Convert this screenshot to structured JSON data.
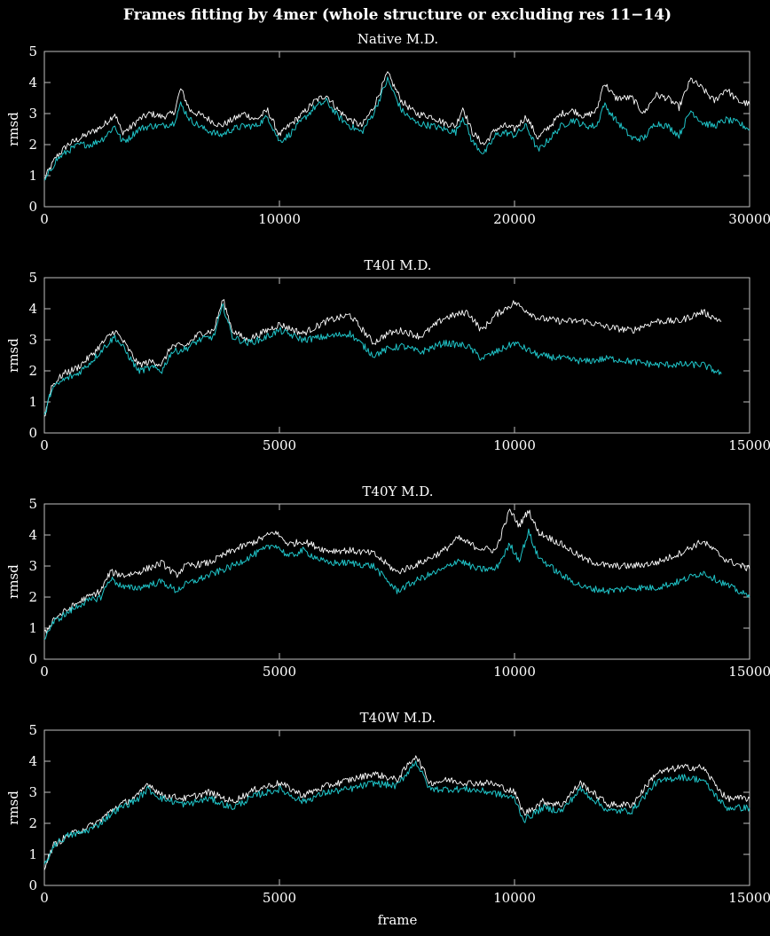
{
  "suptitle": "Frames fitting by 4mer (whole structure or excluding res 11−14)",
  "xlabel": "frame",
  "colors": {
    "background": "#000000",
    "whole_structure": "#ffffff",
    "excluding_res": "#1fc4c8",
    "axes": "#bfbfbf"
  },
  "chart_data": [
    {
      "type": "line",
      "title": "Native M.D.",
      "ylabel": "rmsd",
      "xlim": [
        0,
        30000
      ],
      "ylim": [
        0,
        5
      ],
      "xticks": [
        0,
        10000,
        20000,
        30000
      ],
      "yticks": [
        0,
        1,
        2,
        3,
        4,
        5
      ],
      "series": [
        {
          "name": "whole structure",
          "color": "#ffffff",
          "x": [
            0,
            500,
            1000,
            1500,
            2000,
            2500,
            3000,
            3300,
            3600,
            4000,
            4500,
            5000,
            5500,
            5800,
            6200,
            6800,
            7500,
            8000,
            8500,
            9000,
            9500,
            10000,
            10400,
            11000,
            11500,
            12000,
            12500,
            13000,
            13500,
            14000,
            14600,
            15200,
            15800,
            16500,
            17000,
            17500,
            17800,
            18200,
            18700,
            19200,
            19600,
            20000,
            20500,
            21000,
            21500,
            22000,
            22500,
            23000,
            23500,
            23800,
            24300,
            25000,
            25500,
            26000,
            26500,
            27000,
            27500,
            28000,
            28500,
            29000,
            29500,
            30000
          ],
          "y": [
            0.9,
            1.6,
            2.0,
            2.2,
            2.4,
            2.6,
            3.0,
            2.4,
            2.5,
            2.8,
            3.0,
            2.9,
            3.0,
            3.8,
            3.1,
            2.9,
            2.6,
            2.8,
            3.0,
            2.8,
            3.1,
            2.3,
            2.6,
            3.0,
            3.4,
            3.6,
            3.1,
            2.8,
            2.6,
            3.2,
            4.3,
            3.4,
            3.0,
            2.9,
            2.7,
            2.6,
            3.2,
            2.4,
            2.0,
            2.5,
            2.6,
            2.5,
            2.9,
            2.2,
            2.6,
            3.0,
            3.1,
            2.9,
            3.1,
            4.0,
            3.5,
            3.5,
            3.0,
            3.6,
            3.5,
            3.2,
            4.1,
            3.8,
            3.4,
            3.8,
            3.4,
            3.3
          ]
        },
        {
          "name": "excluding res 11−14",
          "color": "#1fc4c8",
          "x": [
            0,
            500,
            1000,
            1500,
            2000,
            2500,
            3000,
            3300,
            3600,
            4000,
            4500,
            5000,
            5500,
            5800,
            6200,
            6800,
            7500,
            8000,
            8500,
            9000,
            9500,
            10000,
            10400,
            11000,
            11500,
            12000,
            12500,
            13000,
            13500,
            14000,
            14600,
            15200,
            15800,
            16500,
            17000,
            17500,
            17800,
            18200,
            18700,
            19200,
            19600,
            20000,
            20500,
            21000,
            21500,
            22000,
            22500,
            23000,
            23500,
            23800,
            24300,
            25000,
            25500,
            26000,
            26500,
            27000,
            27500,
            28000,
            28500,
            29000,
            29500,
            30000
          ],
          "y": [
            0.8,
            1.5,
            1.8,
            2.0,
            2.0,
            2.2,
            2.6,
            2.1,
            2.2,
            2.5,
            2.6,
            2.6,
            2.7,
            3.3,
            2.8,
            2.5,
            2.3,
            2.5,
            2.6,
            2.6,
            2.9,
            2.1,
            2.3,
            2.8,
            3.2,
            3.4,
            2.9,
            2.6,
            2.4,
            3.0,
            4.1,
            3.1,
            2.7,
            2.6,
            2.5,
            2.4,
            2.9,
            2.1,
            1.7,
            2.3,
            2.4,
            2.3,
            2.6,
            1.8,
            2.2,
            2.6,
            2.8,
            2.6,
            2.6,
            3.3,
            2.8,
            2.2,
            2.2,
            2.7,
            2.6,
            2.3,
            3.1,
            2.7,
            2.6,
            2.8,
            2.7,
            2.5
          ]
        }
      ]
    },
    {
      "type": "line",
      "title": "T40I M.D.",
      "ylabel": "rmsd",
      "xlim": [
        0,
        15000
      ],
      "ylim": [
        0,
        5
      ],
      "xticks": [
        0,
        5000,
        10000,
        15000
      ],
      "yticks": [
        0,
        1,
        2,
        3,
        4,
        5
      ],
      "series": [
        {
          "name": "whole structure",
          "color": "#ffffff",
          "x": [
            0,
            150,
            400,
            700,
            1000,
            1300,
            1500,
            1700,
            2000,
            2300,
            2500,
            2700,
            3000,
            3300,
            3600,
            3800,
            4000,
            4300,
            4600,
            5000,
            5500,
            6000,
            6500,
            7000,
            7300,
            7600,
            8000,
            8500,
            9000,
            9300,
            9600,
            10000,
            10500,
            11000,
            11500,
            12000,
            12500,
            13000,
            13500,
            14000,
            14400
          ],
          "y": [
            0.5,
            1.5,
            1.9,
            2.1,
            2.5,
            3.0,
            3.3,
            2.9,
            2.2,
            2.3,
            2.2,
            2.8,
            2.8,
            3.2,
            3.3,
            4.3,
            3.3,
            3.0,
            3.2,
            3.5,
            3.2,
            3.6,
            3.8,
            2.9,
            3.2,
            3.3,
            3.1,
            3.7,
            3.9,
            3.3,
            3.8,
            4.2,
            3.7,
            3.6,
            3.6,
            3.4,
            3.3,
            3.6,
            3.6,
            3.9,
            3.6
          ]
        },
        {
          "name": "excluding res 11−14",
          "color": "#1fc4c8",
          "x": [
            0,
            150,
            400,
            700,
            1000,
            1300,
            1500,
            1700,
            2000,
            2300,
            2500,
            2700,
            3000,
            3300,
            3600,
            3800,
            4000,
            4300,
            4600,
            5000,
            5500,
            6000,
            6500,
            7000,
            7300,
            7600,
            8000,
            8500,
            9000,
            9300,
            9600,
            10000,
            10500,
            11000,
            11500,
            12000,
            12500,
            13000,
            13500,
            14000,
            14400
          ],
          "y": [
            0.5,
            1.4,
            1.7,
            1.9,
            2.3,
            2.8,
            3.1,
            2.7,
            2.0,
            2.1,
            2.0,
            2.6,
            2.7,
            3.0,
            3.1,
            4.1,
            3.1,
            2.9,
            3.0,
            3.3,
            3.0,
            3.1,
            3.2,
            2.5,
            2.7,
            2.8,
            2.6,
            2.9,
            2.8,
            2.4,
            2.6,
            2.9,
            2.5,
            2.4,
            2.3,
            2.4,
            2.3,
            2.2,
            2.2,
            2.2,
            1.9
          ]
        }
      ]
    },
    {
      "type": "line",
      "title": "T40Y M.D.",
      "ylabel": "rmsd",
      "xlim": [
        0,
        15000
      ],
      "ylim": [
        0,
        5
      ],
      "xticks": [
        0,
        5000,
        10000,
        15000
      ],
      "yticks": [
        0,
        1,
        2,
        3,
        4,
        5
      ],
      "series": [
        {
          "name": "whole structure",
          "color": "#ffffff",
          "x": [
            0,
            200,
            500,
            800,
            1200,
            1400,
            1700,
            2000,
            2500,
            2800,
            3000,
            3500,
            4000,
            4500,
            4900,
            5200,
            5500,
            6000,
            6500,
            7000,
            7500,
            8000,
            8500,
            8800,
            9200,
            9600,
            9900,
            10100,
            10300,
            10500,
            11000,
            11500,
            12000,
            12500,
            13000,
            13500,
            14000,
            14500,
            15000
          ],
          "y": [
            0.8,
            1.3,
            1.6,
            1.9,
            2.2,
            2.8,
            2.7,
            2.8,
            3.1,
            2.7,
            3.0,
            3.1,
            3.5,
            3.8,
            4.1,
            3.7,
            3.8,
            3.5,
            3.5,
            3.4,
            2.8,
            3.1,
            3.5,
            3.9,
            3.6,
            3.5,
            4.8,
            4.3,
            4.8,
            4.1,
            3.7,
            3.2,
            3.0,
            3.0,
            3.1,
            3.4,
            3.8,
            3.2,
            2.9
          ]
        },
        {
          "name": "excluding res 11−14",
          "color": "#1fc4c8",
          "x": [
            0,
            200,
            500,
            800,
            1200,
            1400,
            1700,
            2000,
            2500,
            2800,
            3000,
            3500,
            4000,
            4500,
            4900,
            5200,
            5500,
            6000,
            6500,
            7000,
            7500,
            8000,
            8500,
            8800,
            9200,
            9600,
            9900,
            10100,
            10300,
            10500,
            11000,
            11500,
            12000,
            12500,
            13000,
            13500,
            14000,
            14500,
            15000
          ],
          "y": [
            0.7,
            1.2,
            1.5,
            1.8,
            2.0,
            2.6,
            2.3,
            2.3,
            2.5,
            2.2,
            2.4,
            2.7,
            3.0,
            3.4,
            3.7,
            3.3,
            3.5,
            3.1,
            3.1,
            3.0,
            2.2,
            2.6,
            2.9,
            3.2,
            2.9,
            2.9,
            3.7,
            3.2,
            4.1,
            3.3,
            2.7,
            2.3,
            2.2,
            2.3,
            2.3,
            2.5,
            2.8,
            2.4,
            2.0
          ]
        }
      ]
    },
    {
      "type": "line",
      "title": "T40W M.D.",
      "ylabel": "rmsd",
      "xlim": [
        0,
        15000
      ],
      "ylim": [
        0,
        5
      ],
      "xticks": [
        0,
        5000,
        10000,
        15000
      ],
      "yticks": [
        0,
        1,
        2,
        3,
        4,
        5
      ],
      "series": [
        {
          "name": "whole structure",
          "color": "#ffffff",
          "x": [
            0,
            200,
            500,
            800,
            1100,
            1500,
            2000,
            2200,
            2500,
            3000,
            3500,
            4000,
            4500,
            5000,
            5500,
            6000,
            6500,
            7000,
            7500,
            7900,
            8200,
            8600,
            9000,
            9500,
            10000,
            10200,
            10600,
            11000,
            11400,
            12000,
            12500,
            13000,
            13500,
            14000,
            14500,
            15000
          ],
          "y": [
            0.6,
            1.3,
            1.6,
            1.8,
            2.0,
            2.5,
            2.9,
            3.3,
            2.9,
            2.8,
            3.0,
            2.7,
            3.1,
            3.3,
            2.9,
            3.2,
            3.4,
            3.6,
            3.4,
            4.2,
            3.3,
            3.4,
            3.3,
            3.3,
            3.0,
            2.3,
            2.7,
            2.6,
            3.3,
            2.6,
            2.6,
            3.6,
            3.8,
            3.8,
            2.8,
            2.8
          ]
        },
        {
          "name": "excluding res 11−14",
          "color": "#1fc4c8",
          "x": [
            0,
            200,
            500,
            800,
            1100,
            1500,
            2000,
            2200,
            2500,
            3000,
            3500,
            4000,
            4500,
            5000,
            5500,
            6000,
            6500,
            7000,
            7500,
            7900,
            8200,
            8600,
            9000,
            9500,
            10000,
            10200,
            10600,
            11000,
            11400,
            12000,
            12500,
            13000,
            13500,
            14000,
            14500,
            15000
          ],
          "y": [
            0.6,
            1.3,
            1.6,
            1.7,
            1.9,
            2.4,
            2.8,
            3.1,
            2.8,
            2.6,
            2.8,
            2.5,
            2.9,
            3.1,
            2.7,
            3.0,
            3.1,
            3.3,
            3.2,
            4.0,
            3.1,
            3.1,
            3.1,
            3.0,
            2.8,
            2.1,
            2.5,
            2.4,
            3.1,
            2.4,
            2.4,
            3.3,
            3.5,
            3.4,
            2.5,
            2.5
          ]
        }
      ]
    }
  ]
}
